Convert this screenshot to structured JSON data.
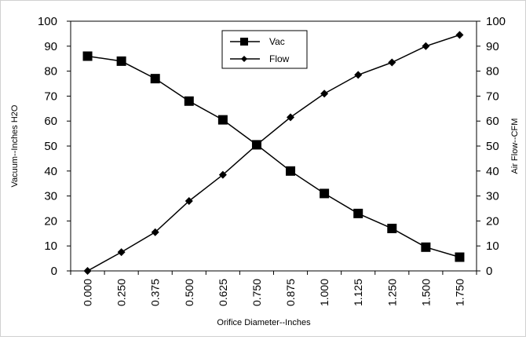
{
  "chart_data": {
    "type": "line",
    "title": "",
    "xlabel": "Orifice Diameter--Inches",
    "ylabel": "Vacuum--Inches H2O",
    "y2label": "Air Flow--CFM",
    "categories": [
      "0.000",
      "0.250",
      "0.375",
      "0.500",
      "0.625",
      "0.750",
      "0.875",
      "1.000",
      "1.125",
      "1.250",
      "1.500",
      "1.750"
    ],
    "ylim": [
      0,
      100
    ],
    "y2lim": [
      0,
      100
    ],
    "yticks": [
      "0",
      "10",
      "20",
      "30",
      "40",
      "50",
      "60",
      "70",
      "80",
      "90",
      "100"
    ],
    "y2ticks": [
      "0",
      "10",
      "20",
      "30",
      "40",
      "50",
      "60",
      "70",
      "80",
      "90",
      "100"
    ],
    "grid": false,
    "legend_position": "top-center",
    "series": [
      {
        "name": "Vac",
        "axis": "left",
        "marker": "square",
        "color": "#000000",
        "values": [
          86,
          84,
          77,
          68,
          60.5,
          50.5,
          40,
          31,
          23,
          17,
          9.5,
          5.5
        ]
      },
      {
        "name": "Flow",
        "axis": "right",
        "marker": "diamond",
        "color": "#000000",
        "values": [
          0,
          7.5,
          15.5,
          28,
          38.5,
          50.5,
          61.5,
          71,
          78.5,
          83.5,
          90,
          94.5
        ]
      }
    ]
  }
}
